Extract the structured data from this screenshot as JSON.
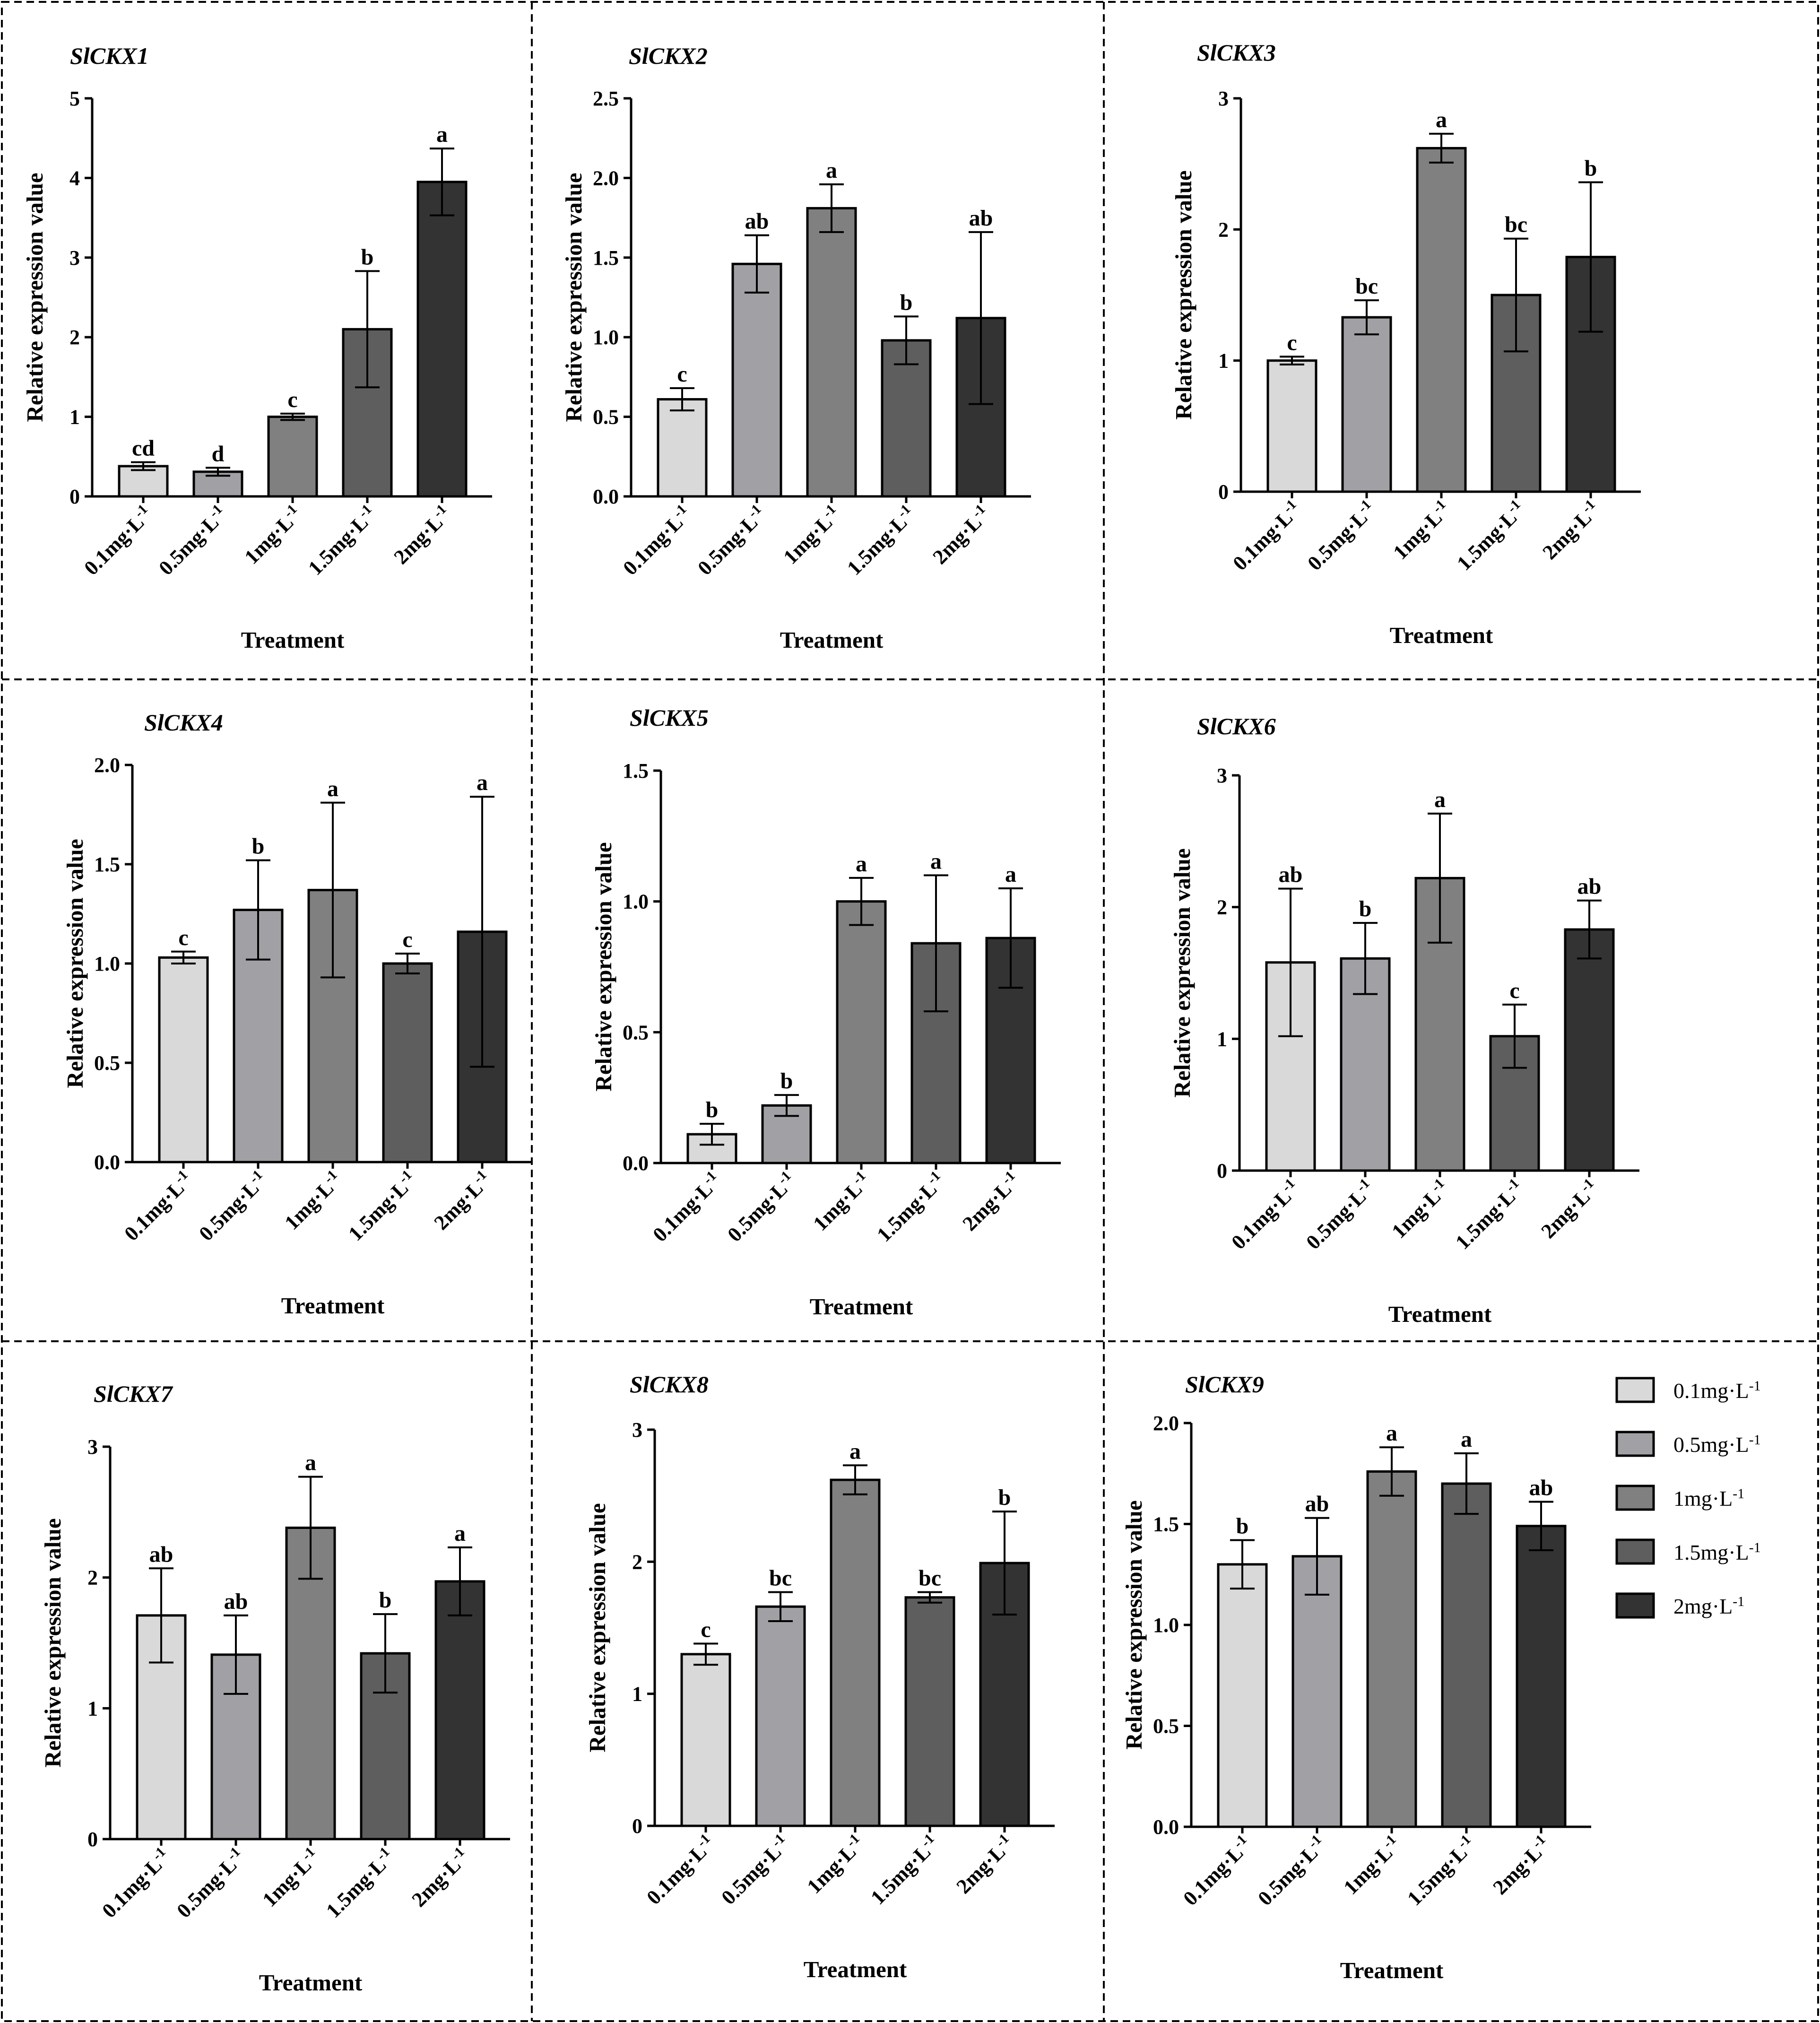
{
  "colors": {
    "0.1": "#d9d9d9",
    "0.5": "#a1a1a5",
    "1": "#808080",
    "1.5": "#5e5e5e",
    "2": "#333333"
  },
  "legend": {
    "items": [
      {
        "label": "0.1mg·L",
        "sup": "-1",
        "color": "#d9d9d9"
      },
      {
        "label": "0.5mg·L",
        "sup": "-1",
        "color": "#a1a1a5"
      },
      {
        "label": "1mg·L",
        "sup": "-1",
        "color": "#808080"
      },
      {
        "label": "1.5mg·L",
        "sup": "-1",
        "color": "#5e5e5e"
      },
      {
        "label": "2mg·L",
        "sup": "-1",
        "color": "#333333"
      }
    ]
  },
  "chart_data": [
    {
      "type": "bar",
      "title": "SlCKX1",
      "xlabel": "Treatment",
      "ylabel": "Relative expression value",
      "categories": [
        "0.1mg·L-1",
        "0.5mg·L-1",
        "1mg·L-1",
        "1.5mg·L-1",
        "2mg·L-1"
      ],
      "values": [
        0.38,
        0.31,
        1.0,
        2.1,
        3.95
      ],
      "errors": [
        0.05,
        0.05,
        0.04,
        0.73,
        0.42
      ],
      "letters": [
        "cd",
        "d",
        "c",
        "b",
        "a"
      ],
      "ylim": [
        0,
        5
      ],
      "yticks": [
        "0",
        "1",
        "2",
        "3",
        "4",
        "5"
      ]
    },
    {
      "type": "bar",
      "title": "SlCKX2",
      "xlabel": "Treatment",
      "ylabel": "Relative expression value",
      "categories": [
        "0.1mg·L-1",
        "0.5mg·L-1",
        "1mg·L-1",
        "1.5mg·L-1",
        "2mg·L-1"
      ],
      "values": [
        0.61,
        1.46,
        1.81,
        0.98,
        1.12
      ],
      "errors": [
        0.07,
        0.18,
        0.15,
        0.15,
        0.54
      ],
      "letters": [
        "c",
        "ab",
        "a",
        "b",
        "ab"
      ],
      "ylim": [
        0,
        2.5
      ],
      "yticks": [
        "0.0",
        "0.5",
        "1.0",
        "1.5",
        "2.0",
        "2.5"
      ]
    },
    {
      "type": "bar",
      "title": "SlCKX3",
      "xlabel": "Treatment",
      "ylabel": "Relative expression value",
      "categories": [
        "0.1mg·L-1",
        "0.5mg·L-1",
        "1mg·L-1",
        "1.5mg·L-1",
        "2mg·L-1"
      ],
      "values": [
        1.0,
        1.33,
        2.62,
        1.5,
        1.79
      ],
      "errors": [
        0.03,
        0.13,
        0.11,
        0.43,
        0.57
      ],
      "letters": [
        "c",
        "bc",
        "a",
        "bc",
        "b"
      ],
      "ylim": [
        0,
        3
      ],
      "yticks": [
        "0",
        "1",
        "2",
        "3"
      ]
    },
    {
      "type": "bar",
      "title": "SlCKX4",
      "xlabel": "Treatment",
      "ylabel": "Relative expression value",
      "categories": [
        "0.1mg·L-1",
        "0.5mg·L-1",
        "1mg·L-1",
        "1.5mg·L-1",
        "2mg·L-1"
      ],
      "values": [
        1.03,
        1.27,
        1.37,
        1.0,
        1.16
      ],
      "errors": [
        0.03,
        0.25,
        0.44,
        0.05,
        0.68
      ],
      "letters": [
        "c",
        "b",
        "a",
        "c",
        "a"
      ],
      "ylim": [
        0,
        2.0
      ],
      "yticks": [
        "0.0",
        "0.5",
        "1.0",
        "1.5",
        "2.0"
      ]
    },
    {
      "type": "bar",
      "title": "SlCKX5",
      "xlabel": "Treatment",
      "ylabel": "Relative expression value",
      "categories": [
        "0.1mg·L-1",
        "0.5mg·L-1",
        "1mg·L-1",
        "1.5mg·L-1",
        "2mg·L-1"
      ],
      "values": [
        0.11,
        0.22,
        1.0,
        0.84,
        0.86
      ],
      "errors": [
        0.04,
        0.04,
        0.09,
        0.26,
        0.19
      ],
      "letters": [
        "b",
        "b",
        "a",
        "a",
        "a"
      ],
      "ylim": [
        0,
        1.5
      ],
      "yticks": [
        "0.0",
        "0.5",
        "1.0",
        "1.5"
      ]
    },
    {
      "type": "bar",
      "title": "SlCKX6",
      "xlabel": "Treatment",
      "ylabel": "Relative expression value",
      "categories": [
        "0.1mg·L-1",
        "0.5mg·L-1",
        "1mg·L-1",
        "1.5mg·L-1",
        "2mg·L-1"
      ],
      "values": [
        1.58,
        1.61,
        2.22,
        1.02,
        1.83
      ],
      "errors": [
        0.56,
        0.27,
        0.49,
        0.24,
        0.22
      ],
      "letters": [
        "ab",
        "b",
        "a",
        "c",
        "ab"
      ],
      "ylim": [
        0,
        3
      ],
      "yticks": [
        "0",
        "1",
        "2",
        "3"
      ]
    },
    {
      "type": "bar",
      "title": "SlCKX7",
      "xlabel": "Treatment",
      "ylabel": "Relative expression value",
      "categories": [
        "0.1mg·L-1",
        "0.5mg·L-1",
        "1mg·L-1",
        "1.5mg·L-1",
        "2mg·L-1"
      ],
      "values": [
        1.71,
        1.41,
        2.38,
        1.42,
        1.97
      ],
      "errors": [
        0.36,
        0.3,
        0.39,
        0.3,
        0.26
      ],
      "letters": [
        "ab",
        "ab",
        "a",
        "b",
        "a"
      ],
      "ylim": [
        0,
        3
      ],
      "yticks": [
        "0",
        "1",
        "2",
        "3"
      ]
    },
    {
      "type": "bar",
      "title": "SlCKX8",
      "xlabel": "Treatment",
      "ylabel": "Relative expression value",
      "categories": [
        "0.1mg·L-1",
        "0.5mg·L-1",
        "1mg·L-1",
        "1.5mg·L-1",
        "2mg·L-1"
      ],
      "values": [
        1.3,
        1.66,
        2.62,
        1.73,
        1.99
      ],
      "errors": [
        0.08,
        0.11,
        0.11,
        0.04,
        0.39
      ],
      "letters": [
        "c",
        "bc",
        "a",
        "bc",
        "b"
      ],
      "ylim": [
        0,
        3
      ],
      "yticks": [
        "0",
        "1",
        "2",
        "3"
      ]
    },
    {
      "type": "bar",
      "title": "SlCKX9",
      "xlabel": "Treatment",
      "ylabel": "Relative expression value",
      "categories": [
        "0.1mg·L-1",
        "0.5mg·L-1",
        "1mg·L-1",
        "1.5mg·L-1",
        "2mg·L-1"
      ],
      "values": [
        1.3,
        1.34,
        1.76,
        1.7,
        1.49
      ],
      "errors": [
        0.12,
        0.19,
        0.12,
        0.15,
        0.12
      ],
      "letters": [
        "b",
        "ab",
        "a",
        "a",
        "ab"
      ],
      "ylim": [
        0,
        2.0
      ],
      "yticks": [
        "0.0",
        "0.5",
        "1.0",
        "1.5",
        "2.0"
      ]
    }
  ]
}
